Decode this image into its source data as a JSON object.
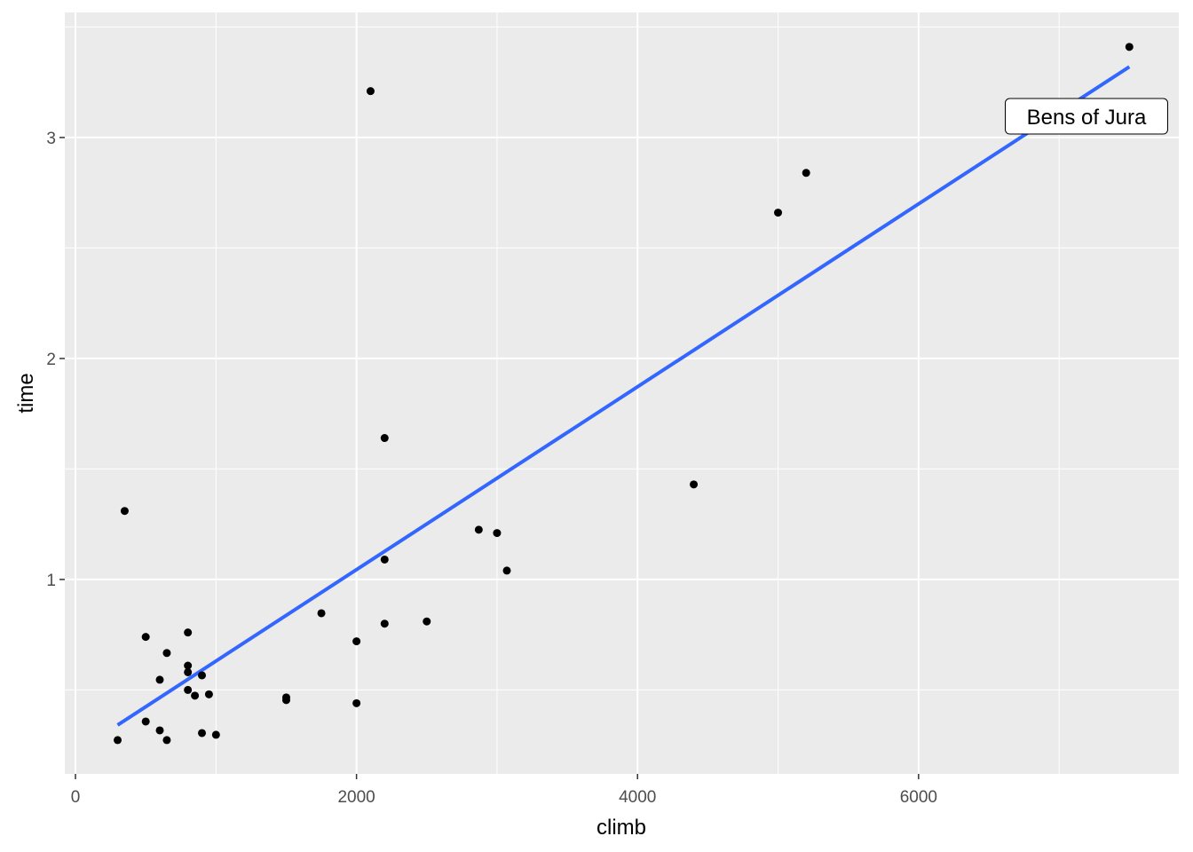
{
  "chart_data": {
    "type": "scatter",
    "title": "",
    "xlabel": "climb",
    "ylabel": "time",
    "xlim": [
      -76,
      7852
    ],
    "ylim": [
      0.12,
      3.566
    ],
    "x_ticks": [
      0,
      2000,
      4000,
      6000
    ],
    "x_tick_labels": [
      "0",
      "2000",
      "4000",
      "6000"
    ],
    "x_minor": [
      1000,
      3000,
      5000,
      7000
    ],
    "y_ticks": [
      1,
      2,
      3
    ],
    "y_tick_labels": [
      "1",
      "2",
      "3"
    ],
    "y_minor": [
      0.5,
      1.5,
      2.5,
      3.5
    ],
    "grid": true,
    "colors": {
      "panel": "#EBEBEB",
      "grid": "#FFFFFF",
      "points": "#000000",
      "fit_line": "#3366FF"
    },
    "points": [
      {
        "x": 7500,
        "y": 3.41
      },
      {
        "x": 2100,
        "y": 3.21
      },
      {
        "x": 5200,
        "y": 2.84
      },
      {
        "x": 5000,
        "y": 2.66
      },
      {
        "x": 2200,
        "y": 1.64
      },
      {
        "x": 4400,
        "y": 1.43
      },
      {
        "x": 350,
        "y": 1.31
      },
      {
        "x": 2870,
        "y": 1.225
      },
      {
        "x": 3000,
        "y": 1.21
      },
      {
        "x": 3070,
        "y": 1.04
      },
      {
        "x": 2200,
        "y": 1.09
      },
      {
        "x": 1750,
        "y": 0.847
      },
      {
        "x": 2500,
        "y": 0.81
      },
      {
        "x": 2200,
        "y": 0.8
      },
      {
        "x": 2000,
        "y": 0.72
      },
      {
        "x": 500,
        "y": 0.74
      },
      {
        "x": 800,
        "y": 0.76
      },
      {
        "x": 650,
        "y": 0.667
      },
      {
        "x": 800,
        "y": 0.61
      },
      {
        "x": 800,
        "y": 0.58
      },
      {
        "x": 900,
        "y": 0.566
      },
      {
        "x": 600,
        "y": 0.546
      },
      {
        "x": 800,
        "y": 0.5
      },
      {
        "x": 850,
        "y": 0.474
      },
      {
        "x": 950,
        "y": 0.48
      },
      {
        "x": 1500,
        "y": 0.466
      },
      {
        "x": 1500,
        "y": 0.454
      },
      {
        "x": 2000,
        "y": 0.44
      },
      {
        "x": 500,
        "y": 0.357
      },
      {
        "x": 600,
        "y": 0.317
      },
      {
        "x": 900,
        "y": 0.305
      },
      {
        "x": 1000,
        "y": 0.297
      },
      {
        "x": 300,
        "y": 0.273
      },
      {
        "x": 650,
        "y": 0.273
      }
    ],
    "fit_line": {
      "method": "linear",
      "x": [
        300,
        7500
      ],
      "y": [
        0.341,
        3.32
      ]
    },
    "annotations": [
      {
        "text": "Bens of Jura",
        "x": 7195,
        "y": 3.096
      }
    ]
  }
}
